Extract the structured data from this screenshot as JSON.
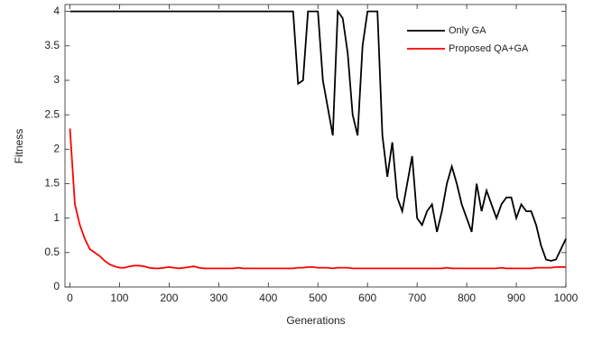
{
  "chart_data": {
    "type": "line",
    "x_label": "Generations",
    "y_label": "Fitness",
    "x": [
      0,
      10,
      20,
      30,
      40,
      50,
      60,
      70,
      80,
      90,
      100,
      110,
      120,
      130,
      140,
      150,
      160,
      170,
      180,
      190,
      200,
      210,
      220,
      230,
      240,
      250,
      260,
      270,
      280,
      290,
      300,
      310,
      320,
      330,
      340,
      350,
      360,
      370,
      380,
      390,
      400,
      410,
      420,
      430,
      440,
      450,
      460,
      470,
      480,
      490,
      500,
      510,
      520,
      530,
      540,
      550,
      560,
      570,
      580,
      590,
      600,
      610,
      620,
      630,
      640,
      650,
      660,
      670,
      680,
      690,
      700,
      710,
      720,
      730,
      740,
      750,
      760,
      770,
      780,
      790,
      800,
      810,
      820,
      830,
      840,
      850,
      860,
      870,
      880,
      890,
      900,
      910,
      920,
      930,
      940,
      950,
      960,
      970,
      980,
      990,
      1000
    ],
    "series": [
      {
        "name": "Only GA",
        "color": "#000000",
        "values": [
          4,
          4,
          4,
          4,
          4,
          4,
          4,
          4,
          4,
          4,
          4,
          4,
          4,
          4,
          4,
          4,
          4,
          4,
          4,
          4,
          4,
          4,
          4,
          4,
          4,
          4,
          4,
          4,
          4,
          4,
          4,
          4,
          4,
          4,
          4,
          4,
          4,
          4,
          4,
          4,
          4,
          4,
          4,
          4,
          4,
          4,
          2.95,
          3.0,
          4,
          4,
          4,
          3.0,
          2.6,
          2.2,
          4,
          3.9,
          3.4,
          2.5,
          2.2,
          3.5,
          4,
          4,
          4,
          2.2,
          1.6,
          2.1,
          1.3,
          1.1,
          1.5,
          1.9,
          1.0,
          0.9,
          1.1,
          1.2,
          0.8,
          1.1,
          1.5,
          1.75,
          1.5,
          1.2,
          1.0,
          0.8,
          1.5,
          1.1,
          1.4,
          1.2,
          1.0,
          1.2,
          1.3,
          1.3,
          1.0,
          1.2,
          1.1,
          1.1,
          0.9,
          0.6,
          0.4,
          0.38,
          0.4,
          0.55,
          0.7
        ]
      },
      {
        "name": "Proposed QA+GA",
        "color": "#ff0000",
        "values": [
          2.3,
          1.2,
          0.9,
          0.7,
          0.55,
          0.5,
          0.45,
          0.38,
          0.33,
          0.3,
          0.28,
          0.28,
          0.3,
          0.31,
          0.31,
          0.3,
          0.28,
          0.27,
          0.27,
          0.28,
          0.29,
          0.28,
          0.27,
          0.28,
          0.29,
          0.3,
          0.28,
          0.27,
          0.27,
          0.27,
          0.27,
          0.27,
          0.27,
          0.27,
          0.28,
          0.27,
          0.27,
          0.27,
          0.27,
          0.27,
          0.27,
          0.27,
          0.27,
          0.27,
          0.27,
          0.27,
          0.28,
          0.28,
          0.29,
          0.29,
          0.28,
          0.28,
          0.28,
          0.27,
          0.28,
          0.28,
          0.28,
          0.27,
          0.27,
          0.27,
          0.27,
          0.27,
          0.27,
          0.27,
          0.27,
          0.27,
          0.27,
          0.27,
          0.27,
          0.27,
          0.27,
          0.27,
          0.27,
          0.27,
          0.27,
          0.27,
          0.28,
          0.27,
          0.27,
          0.27,
          0.27,
          0.27,
          0.27,
          0.27,
          0.27,
          0.27,
          0.27,
          0.28,
          0.27,
          0.27,
          0.27,
          0.27,
          0.27,
          0.27,
          0.28,
          0.28,
          0.28,
          0.28,
          0.29,
          0.29,
          0.29
        ]
      }
    ],
    "xlim": [
      -10,
      1000
    ],
    "xticks": [
      0,
      100,
      200,
      300,
      400,
      500,
      600,
      700,
      800,
      900,
      1000
    ],
    "ylim": [
      0,
      4.1
    ],
    "yticks": [
      0,
      0.5,
      1,
      1.5,
      2,
      2.5,
      3,
      3.5,
      4
    ],
    "legend": "upper right"
  }
}
